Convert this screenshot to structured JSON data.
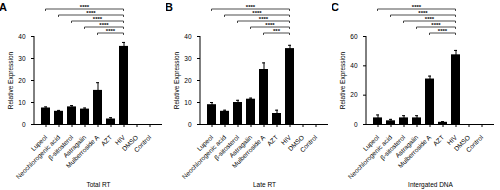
{
  "chart_data": [
    {
      "type": "bar",
      "panel": "A",
      "xlabel": "Total RT",
      "ylabel": "Relative Expression",
      "categories": [
        "Lupeol",
        "Neochlorogenic acid",
        "β-sitosterol",
        "Astragalin",
        "Mulberroside A",
        "AZT",
        "HIV",
        "DMSO",
        "Control"
      ],
      "values": [
        7.5,
        6,
        8,
        7,
        15.5,
        2.5,
        35.5,
        0,
        0
      ],
      "errors": [
        0.5,
        0.4,
        0.6,
        0.5,
        3.5,
        0.6,
        1.8,
        0,
        0
      ],
      "color": "#000000",
      "ylim": [
        0,
        40
      ],
      "yticks": [
        0,
        10,
        20,
        30,
        40
      ],
      "significance": [
        {
          "from": "Lupeol",
          "to": "HIV",
          "label": "****"
        },
        {
          "from": "Neochlorogenic acid",
          "to": "HIV",
          "label": "****"
        },
        {
          "from": "β-sitosterol",
          "to": "HIV",
          "label": "****"
        },
        {
          "from": "Astragalin",
          "to": "HIV",
          "label": "****"
        },
        {
          "from": "Mulberroside A",
          "to": "HIV",
          "label": "****"
        }
      ]
    },
    {
      "type": "bar",
      "panel": "B",
      "xlabel": "Late RT",
      "ylabel": "Relative Expression",
      "categories": [
        "Lupeol",
        "Neochlorogenic acid",
        "β-sitosterol",
        "Astragalin",
        "Mulberroside A",
        "AZT",
        "HIV",
        "DMSO",
        "Control"
      ],
      "values": [
        9,
        6,
        10,
        11.5,
        25,
        5,
        34.5,
        0,
        0
      ],
      "errors": [
        1,
        0.5,
        1,
        0.5,
        3,
        1.5,
        1.5,
        0,
        0
      ],
      "color": "#000000",
      "ylim": [
        0,
        40
      ],
      "yticks": [
        0,
        10,
        20,
        30,
        40
      ],
      "significance": [
        {
          "from": "Lupeol",
          "to": "HIV",
          "label": "****"
        },
        {
          "from": "Neochlorogenic acid",
          "to": "HIV",
          "label": "****"
        },
        {
          "from": "β-sitosterol",
          "to": "HIV",
          "label": "****"
        },
        {
          "from": "Astragalin",
          "to": "HIV",
          "label": "****"
        },
        {
          "from": "Mulberroside A",
          "to": "HIV",
          "label": "***"
        }
      ]
    },
    {
      "type": "bar",
      "panel": "C",
      "xlabel": "Intergated DNA",
      "ylabel": "Relative Expression",
      "categories": [
        "Lupeol",
        "Neochlorogenic acid",
        "β-sitosterol",
        "Astragalin",
        "Mulberroside A",
        "AZT",
        "HIV",
        "DMSO",
        "Control"
      ],
      "values": [
        4.5,
        2.5,
        4.5,
        4.5,
        31,
        1.5,
        47.5,
        0,
        0
      ],
      "errors": [
        2,
        1,
        1.5,
        1.5,
        2,
        0.5,
        3,
        0,
        0
      ],
      "color": "#000000",
      "ylim": [
        0,
        60
      ],
      "yticks": [
        0,
        20,
        40,
        60
      ],
      "significance": [
        {
          "from": "Lupeol",
          "to": "HIV",
          "label": "****"
        },
        {
          "from": "Neochlorogenic acid",
          "to": "HIV",
          "label": "****"
        },
        {
          "from": "β-sitosterol",
          "to": "HIV",
          "label": "****"
        },
        {
          "from": "Astragalin",
          "to": "HIV",
          "label": "****"
        },
        {
          "from": "Mulberroside A",
          "to": "HIV",
          "label": "****"
        }
      ]
    }
  ]
}
